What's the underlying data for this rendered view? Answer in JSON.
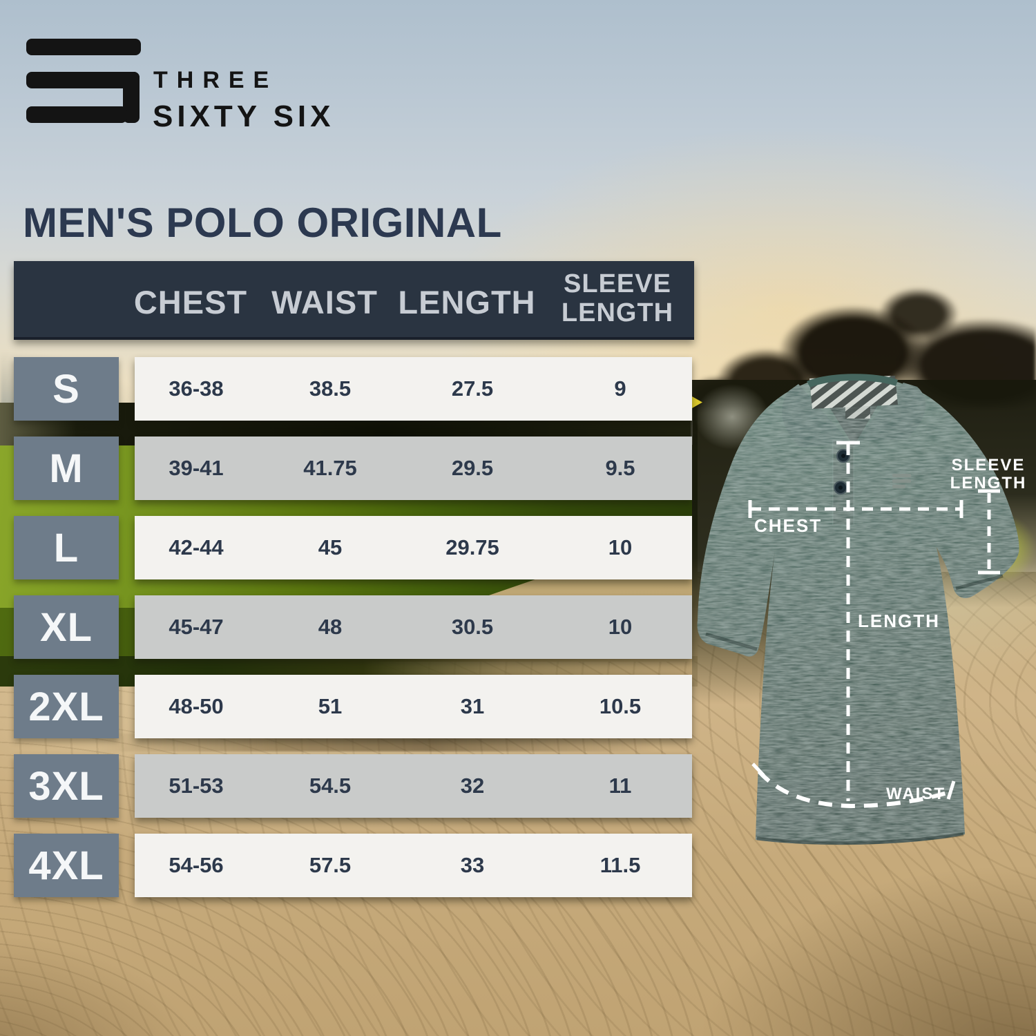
{
  "brand": {
    "logo": "three-bars-s-monogram",
    "name_line1": "THREE",
    "name_line2": "SIXTY SIX"
  },
  "title": "MEN'S POLO ORIGINAL",
  "size_table": {
    "columns": [
      "CHEST",
      "WAIST",
      "LENGTH",
      "SLEEVE LENGTH"
    ],
    "rows": [
      {
        "size": "S",
        "chest": "36-38",
        "waist": "38.5",
        "length": "27.5",
        "sleeve_length": "9"
      },
      {
        "size": "M",
        "chest": "39-41",
        "waist": "41.75",
        "length": "29.5",
        "sleeve_length": "9.5"
      },
      {
        "size": "L",
        "chest": "42-44",
        "waist": "45",
        "length": "29.75",
        "sleeve_length": "10"
      },
      {
        "size": "XL",
        "chest": "45-47",
        "waist": "48",
        "length": "30.5",
        "sleeve_length": "10"
      },
      {
        "size": "2XL",
        "chest": "48-50",
        "waist": "51",
        "length": "31",
        "sleeve_length": "10.5"
      },
      {
        "size": "3XL",
        "chest": "51-53",
        "waist": "54.5",
        "length": "32",
        "sleeve_length": "11"
      },
      {
        "size": "4XL",
        "chest": "54-56",
        "waist": "57.5",
        "length": "33",
        "sleeve_length": "11.5"
      }
    ]
  },
  "shirt_diagram": {
    "garment": "heather green short-sleeve polo shirt with striped inner collar, three-button placket and chest three-bars logo",
    "labels": {
      "chest": "CHEST",
      "length": "LENGTH",
      "waist": "WAIST",
      "sleeve_line1": "SLEEVE",
      "sleeve_line2": "LENGTH"
    }
  },
  "background": {
    "description": "golf course at sunset: hazy sky, tree silhouettes, green fairway and raked sand bunker"
  },
  "colors": {
    "header_bg": "#2a3441",
    "header_text": "#c7ccd3",
    "size_box_bg": "#6e7c8a",
    "row_light": "#f3f2ef",
    "row_alt": "#c9cbca",
    "value_text": "#2d394b",
    "title_text": "#2c3950",
    "logo_black": "#141414",
    "annotation_white": "#ffffff",
    "shirt_green": "#3f5e56",
    "sand": "#c9ae7e",
    "grass": "#5a760f"
  }
}
